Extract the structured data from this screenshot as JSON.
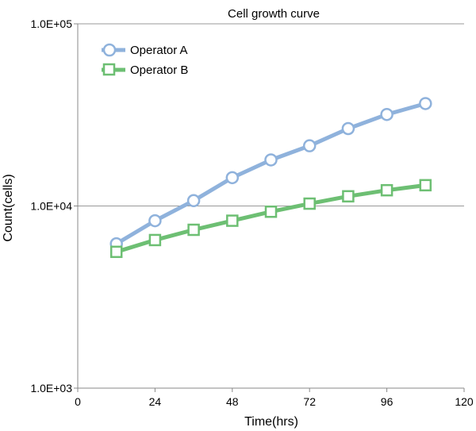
{
  "chart_data": {
    "type": "line",
    "title": "Cell growth curve",
    "xlabel": "Time(hrs)",
    "ylabel": "Count(cells)",
    "xlim": [
      0,
      120
    ],
    "ylim": [
      1000,
      100000
    ],
    "yscale": "log",
    "xticks": [
      "0",
      "24",
      "48",
      "72",
      "96",
      "120"
    ],
    "yticks": [
      "1.0E+03",
      "1.0E+04",
      "1.0E+05"
    ],
    "grid": "horizontal at decades",
    "legend_position": "top-left",
    "x": [
      12,
      24,
      36,
      48,
      60,
      72,
      84,
      96,
      108
    ],
    "series": [
      {
        "name": "Operator A",
        "marker": "circle",
        "color": "#8fb2dc",
        "values": [
          6200,
          8300,
          10700,
          14300,
          17900,
          21400,
          26600,
          31800,
          36500
        ]
      },
      {
        "name": "Operator B",
        "marker": "square",
        "color": "#6dbf73",
        "values": [
          5600,
          6500,
          7400,
          8300,
          9300,
          10300,
          11300,
          12200,
          13000
        ]
      }
    ]
  }
}
